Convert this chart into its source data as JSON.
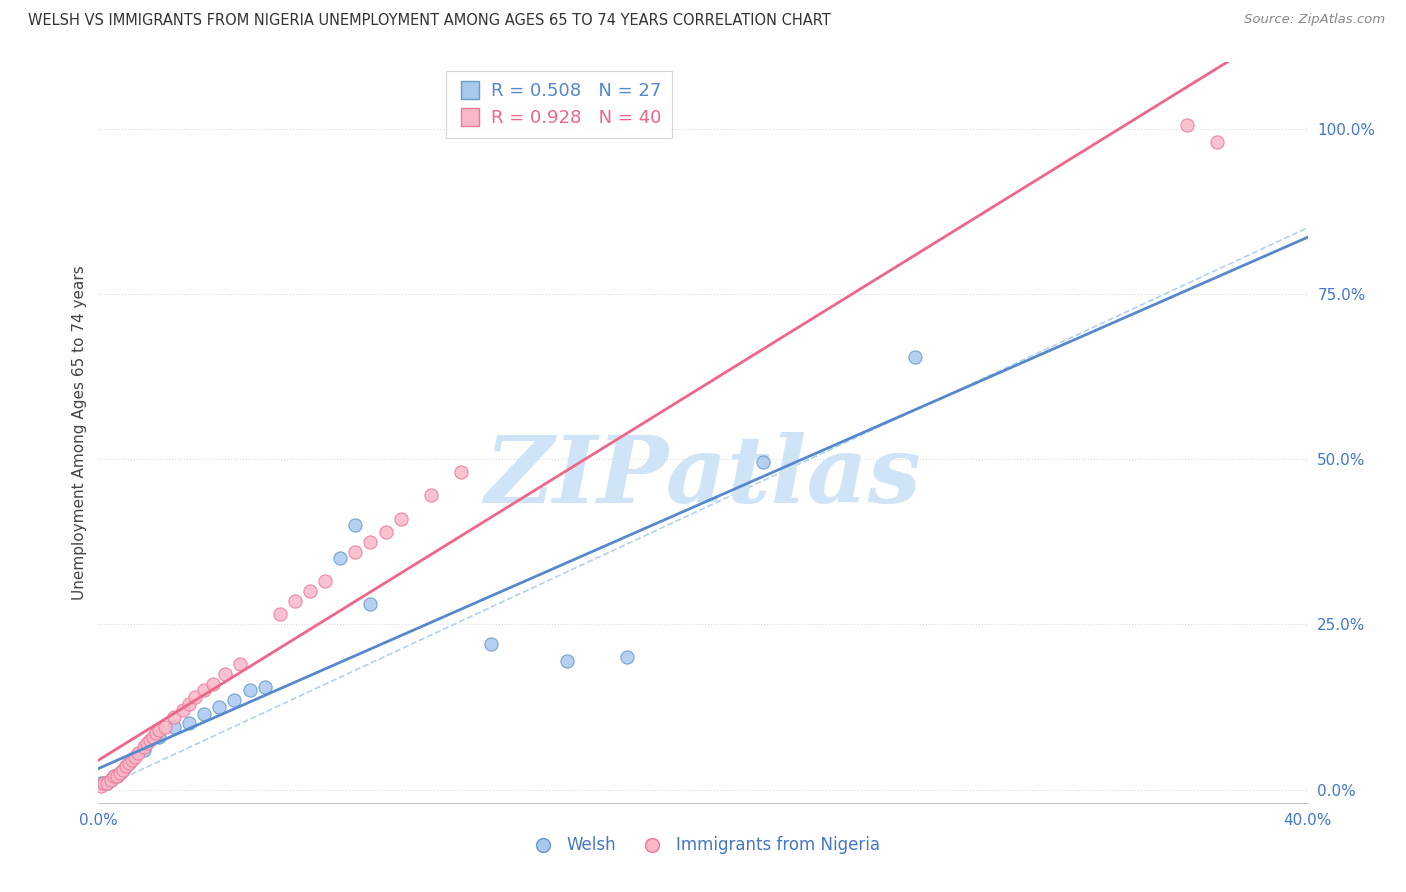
{
  "title": "WELSH VS IMMIGRANTS FROM NIGERIA UNEMPLOYMENT AMONG AGES 65 TO 74 YEARS CORRELATION CHART",
  "source": "Source: ZipAtlas.com",
  "ylabel": "Unemployment Among Ages 65 to 74 years",
  "xlim": [
    0.0,
    0.4
  ],
  "ylim": [
    -0.02,
    1.1
  ],
  "welsh_R": 0.508,
  "welsh_N": 27,
  "nigeria_R": 0.928,
  "nigeria_N": 40,
  "welsh_color": "#A8C8EE",
  "nigeria_color": "#F8B8C8",
  "welsh_edge_color": "#6699CC",
  "nigeria_edge_color": "#EE7799",
  "welsh_line_color": "#5588CC",
  "nigeria_line_color": "#EE6688",
  "diagonal_color": "#AACCEE",
  "watermark": "ZIPatlas",
  "watermark_color": "#D0E4F8",
  "tick_color": "#4477CC",
  "grid_color": "#DDDDDD",
  "background_color": "#FFFFFF",
  "welsh_x": [
    0.001,
    0.002,
    0.003,
    0.004,
    0.005,
    0.006,
    0.007,
    0.008,
    0.009,
    0.01,
    0.015,
    0.02,
    0.025,
    0.03,
    0.035,
    0.04,
    0.045,
    0.05,
    0.055,
    0.08,
    0.085,
    0.09,
    0.13,
    0.155,
    0.175,
    0.22,
    0.27
  ],
  "welsh_y": [
    0.01,
    0.01,
    0.01,
    0.015,
    0.02,
    0.02,
    0.025,
    0.03,
    0.035,
    0.04,
    0.06,
    0.08,
    0.095,
    0.1,
    0.115,
    0.125,
    0.135,
    0.15,
    0.155,
    0.35,
    0.4,
    0.28,
    0.22,
    0.195,
    0.2,
    0.495,
    0.655
  ],
  "nigeria_x": [
    0.001,
    0.002,
    0.003,
    0.004,
    0.005,
    0.006,
    0.007,
    0.008,
    0.009,
    0.01,
    0.011,
    0.012,
    0.013,
    0.015,
    0.016,
    0.017,
    0.018,
    0.019,
    0.02,
    0.022,
    0.025,
    0.028,
    0.03,
    0.032,
    0.035,
    0.038,
    0.042,
    0.047,
    0.06,
    0.065,
    0.07,
    0.075,
    0.085,
    0.09,
    0.095,
    0.1,
    0.11,
    0.12,
    0.36,
    0.37
  ],
  "nigeria_y": [
    0.005,
    0.01,
    0.01,
    0.015,
    0.02,
    0.02,
    0.025,
    0.03,
    0.035,
    0.04,
    0.045,
    0.05,
    0.055,
    0.065,
    0.07,
    0.075,
    0.08,
    0.085,
    0.09,
    0.095,
    0.11,
    0.12,
    0.13,
    0.14,
    0.15,
    0.16,
    0.175,
    0.19,
    0.265,
    0.285,
    0.3,
    0.315,
    0.36,
    0.375,
    0.39,
    0.41,
    0.445,
    0.48,
    1.005,
    0.98
  ]
}
